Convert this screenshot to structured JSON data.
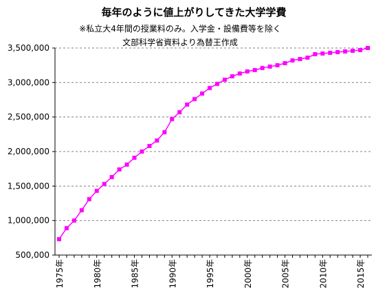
{
  "chart_data": {
    "type": "line",
    "title": "毎年のように値上がりしてきた大学学費",
    "subtitle1": "※私立大4年間の授業料のみ。入学金・設備費等を除く",
    "subtitle2": "文部科学省資料より為替王作成",
    "ylim": [
      500000,
      3500000
    ],
    "yticks": [
      "3,500,000",
      "3,000,000",
      "2,500,000",
      "2,000,000",
      "1,500,000",
      "1,000,000",
      "500,000"
    ],
    "xticks": [
      "1975年",
      "1980年",
      "1985年",
      "1990年",
      "1995年",
      "2000年",
      "2005年",
      "2010年",
      "2015年"
    ],
    "grid": true,
    "line_color": "#ff00ff",
    "series": [
      {
        "x": [
          1975,
          1976,
          1977,
          1978,
          1979,
          1980,
          1981,
          1982,
          1983,
          1984,
          1985,
          1986,
          1987,
          1988,
          1989,
          1990,
          1991,
          1992,
          1993,
          1994,
          1995,
          1996,
          1997,
          1998,
          1999,
          2000,
          2001,
          2002,
          2003,
          2004,
          2005,
          2006,
          2007,
          2008,
          2009,
          2010,
          2011,
          2012,
          2013,
          2014,
          2015,
          2016
        ],
        "values": [
          730000,
          890000,
          1000000,
          1150000,
          1310000,
          1430000,
          1530000,
          1630000,
          1740000,
          1810000,
          1910000,
          2000000,
          2080000,
          2160000,
          2280000,
          2470000,
          2570000,
          2680000,
          2760000,
          2840000,
          2920000,
          2980000,
          3040000,
          3090000,
          3130000,
          3160000,
          3180000,
          3210000,
          3230000,
          3250000,
          3280000,
          3320000,
          3340000,
          3360000,
          3410000,
          3420000,
          3430000,
          3440000,
          3450000,
          3460000,
          3470000,
          3500000
        ]
      }
    ]
  }
}
